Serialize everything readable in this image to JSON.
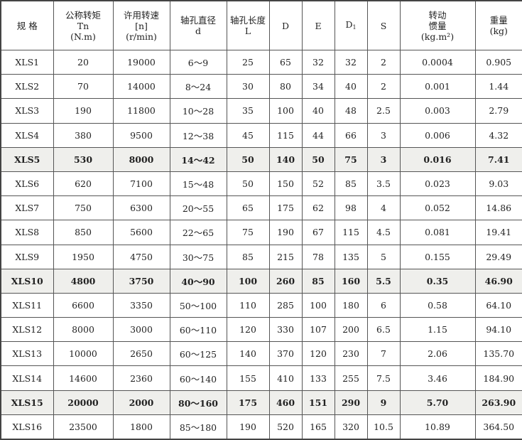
{
  "headers": [
    {
      "line1": "规 格",
      "line2": "",
      "line3": ""
    },
    {
      "line1": "公称转矩",
      "line2": "Tn",
      "line3": "(N.m)"
    },
    {
      "line1": "许用转速",
      "line2": "[n]",
      "line3": "(r/min)"
    },
    {
      "line1": "轴孔直径",
      "line2": "",
      "line3": "d"
    },
    {
      "line1": "轴孔长度",
      "line2": "",
      "line3": "L"
    },
    {
      "line1": "D",
      "line2": "",
      "line3": ""
    },
    {
      "line1": "E",
      "line2": "",
      "line3": ""
    },
    {
      "line1": "D",
      "sub": "1",
      "line2": "",
      "line3": ""
    },
    {
      "line1": "S",
      "line2": "",
      "line3": ""
    },
    {
      "line1": "转动",
      "line2": "惯量",
      "line3": "(kg.m²)"
    },
    {
      "line1": "重量",
      "line2": "(kg)",
      "line3": ""
    }
  ],
  "rows": [
    {
      "bold": false,
      "cells": [
        "XLS1",
        "20",
        "19000",
        "6～9",
        "25",
        "65",
        "32",
        "32",
        "2",
        "0.0004",
        "0.905"
      ]
    },
    {
      "bold": false,
      "cells": [
        "XLS2",
        "70",
        "14000",
        "8～24",
        "30",
        "80",
        "34",
        "40",
        "2",
        "0.001",
        "1.44"
      ]
    },
    {
      "bold": false,
      "cells": [
        "XLS3",
        "190",
        "11800",
        "10～28",
        "35",
        "100",
        "40",
        "48",
        "2.5",
        "0.003",
        "2.79"
      ]
    },
    {
      "bold": false,
      "cells": [
        "XLS4",
        "380",
        "9500",
        "12～38",
        "45",
        "115",
        "44",
        "66",
        "3",
        "0.006",
        "4.32"
      ]
    },
    {
      "bold": true,
      "cells": [
        "XLS5",
        "530",
        "8000",
        "14～42",
        "50",
        "140",
        "50",
        "75",
        "3",
        "0.016",
        "7.41"
      ]
    },
    {
      "bold": false,
      "cells": [
        "XLS6",
        "620",
        "7100",
        "15～48",
        "50",
        "150",
        "52",
        "85",
        "3.5",
        "0.023",
        "9.03"
      ]
    },
    {
      "bold": false,
      "cells": [
        "XLS7",
        "750",
        "6300",
        "20～55",
        "65",
        "175",
        "62",
        "98",
        "4",
        "0.052",
        "14.86"
      ]
    },
    {
      "bold": false,
      "cells": [
        "XLS8",
        "850",
        "5600",
        "22～65",
        "75",
        "190",
        "67",
        "115",
        "4.5",
        "0.081",
        "19.41"
      ]
    },
    {
      "bold": false,
      "cells": [
        "XLS9",
        "1950",
        "4750",
        "30～75",
        "85",
        "215",
        "78",
        "135",
        "5",
        "0.155",
        "29.49"
      ]
    },
    {
      "bold": true,
      "cells": [
        "XLS10",
        "4800",
        "3750",
        "40～90",
        "100",
        "260",
        "85",
        "160",
        "5.5",
        "0.35",
        "46.90"
      ]
    },
    {
      "bold": false,
      "cells": [
        "XLS11",
        "6600",
        "3350",
        "50～100",
        "110",
        "285",
        "100",
        "180",
        "6",
        "0.58",
        "64.10"
      ]
    },
    {
      "bold": false,
      "cells": [
        "XLS12",
        "8000",
        "3000",
        "60～110",
        "120",
        "330",
        "107",
        "200",
        "6.5",
        "1.15",
        "94.10"
      ]
    },
    {
      "bold": false,
      "cells": [
        "XLS13",
        "10000",
        "2650",
        "60～125",
        "140",
        "370",
        "120",
        "230",
        "7",
        "2.06",
        "135.70"
      ]
    },
    {
      "bold": false,
      "cells": [
        "XLS14",
        "14600",
        "2360",
        "60～140",
        "155",
        "410",
        "133",
        "255",
        "7.5",
        "3.46",
        "184.90"
      ]
    },
    {
      "bold": true,
      "cells": [
        "XLS15",
        "20000",
        "2000",
        "80～160",
        "175",
        "460",
        "151",
        "290",
        "9",
        "5.70",
        "263.90"
      ]
    },
    {
      "bold": false,
      "cells": [
        "XLS16",
        "23500",
        "1800",
        "85～180",
        "190",
        "520",
        "165",
        "320",
        "10.5",
        "10.89",
        "364.50"
      ]
    }
  ]
}
